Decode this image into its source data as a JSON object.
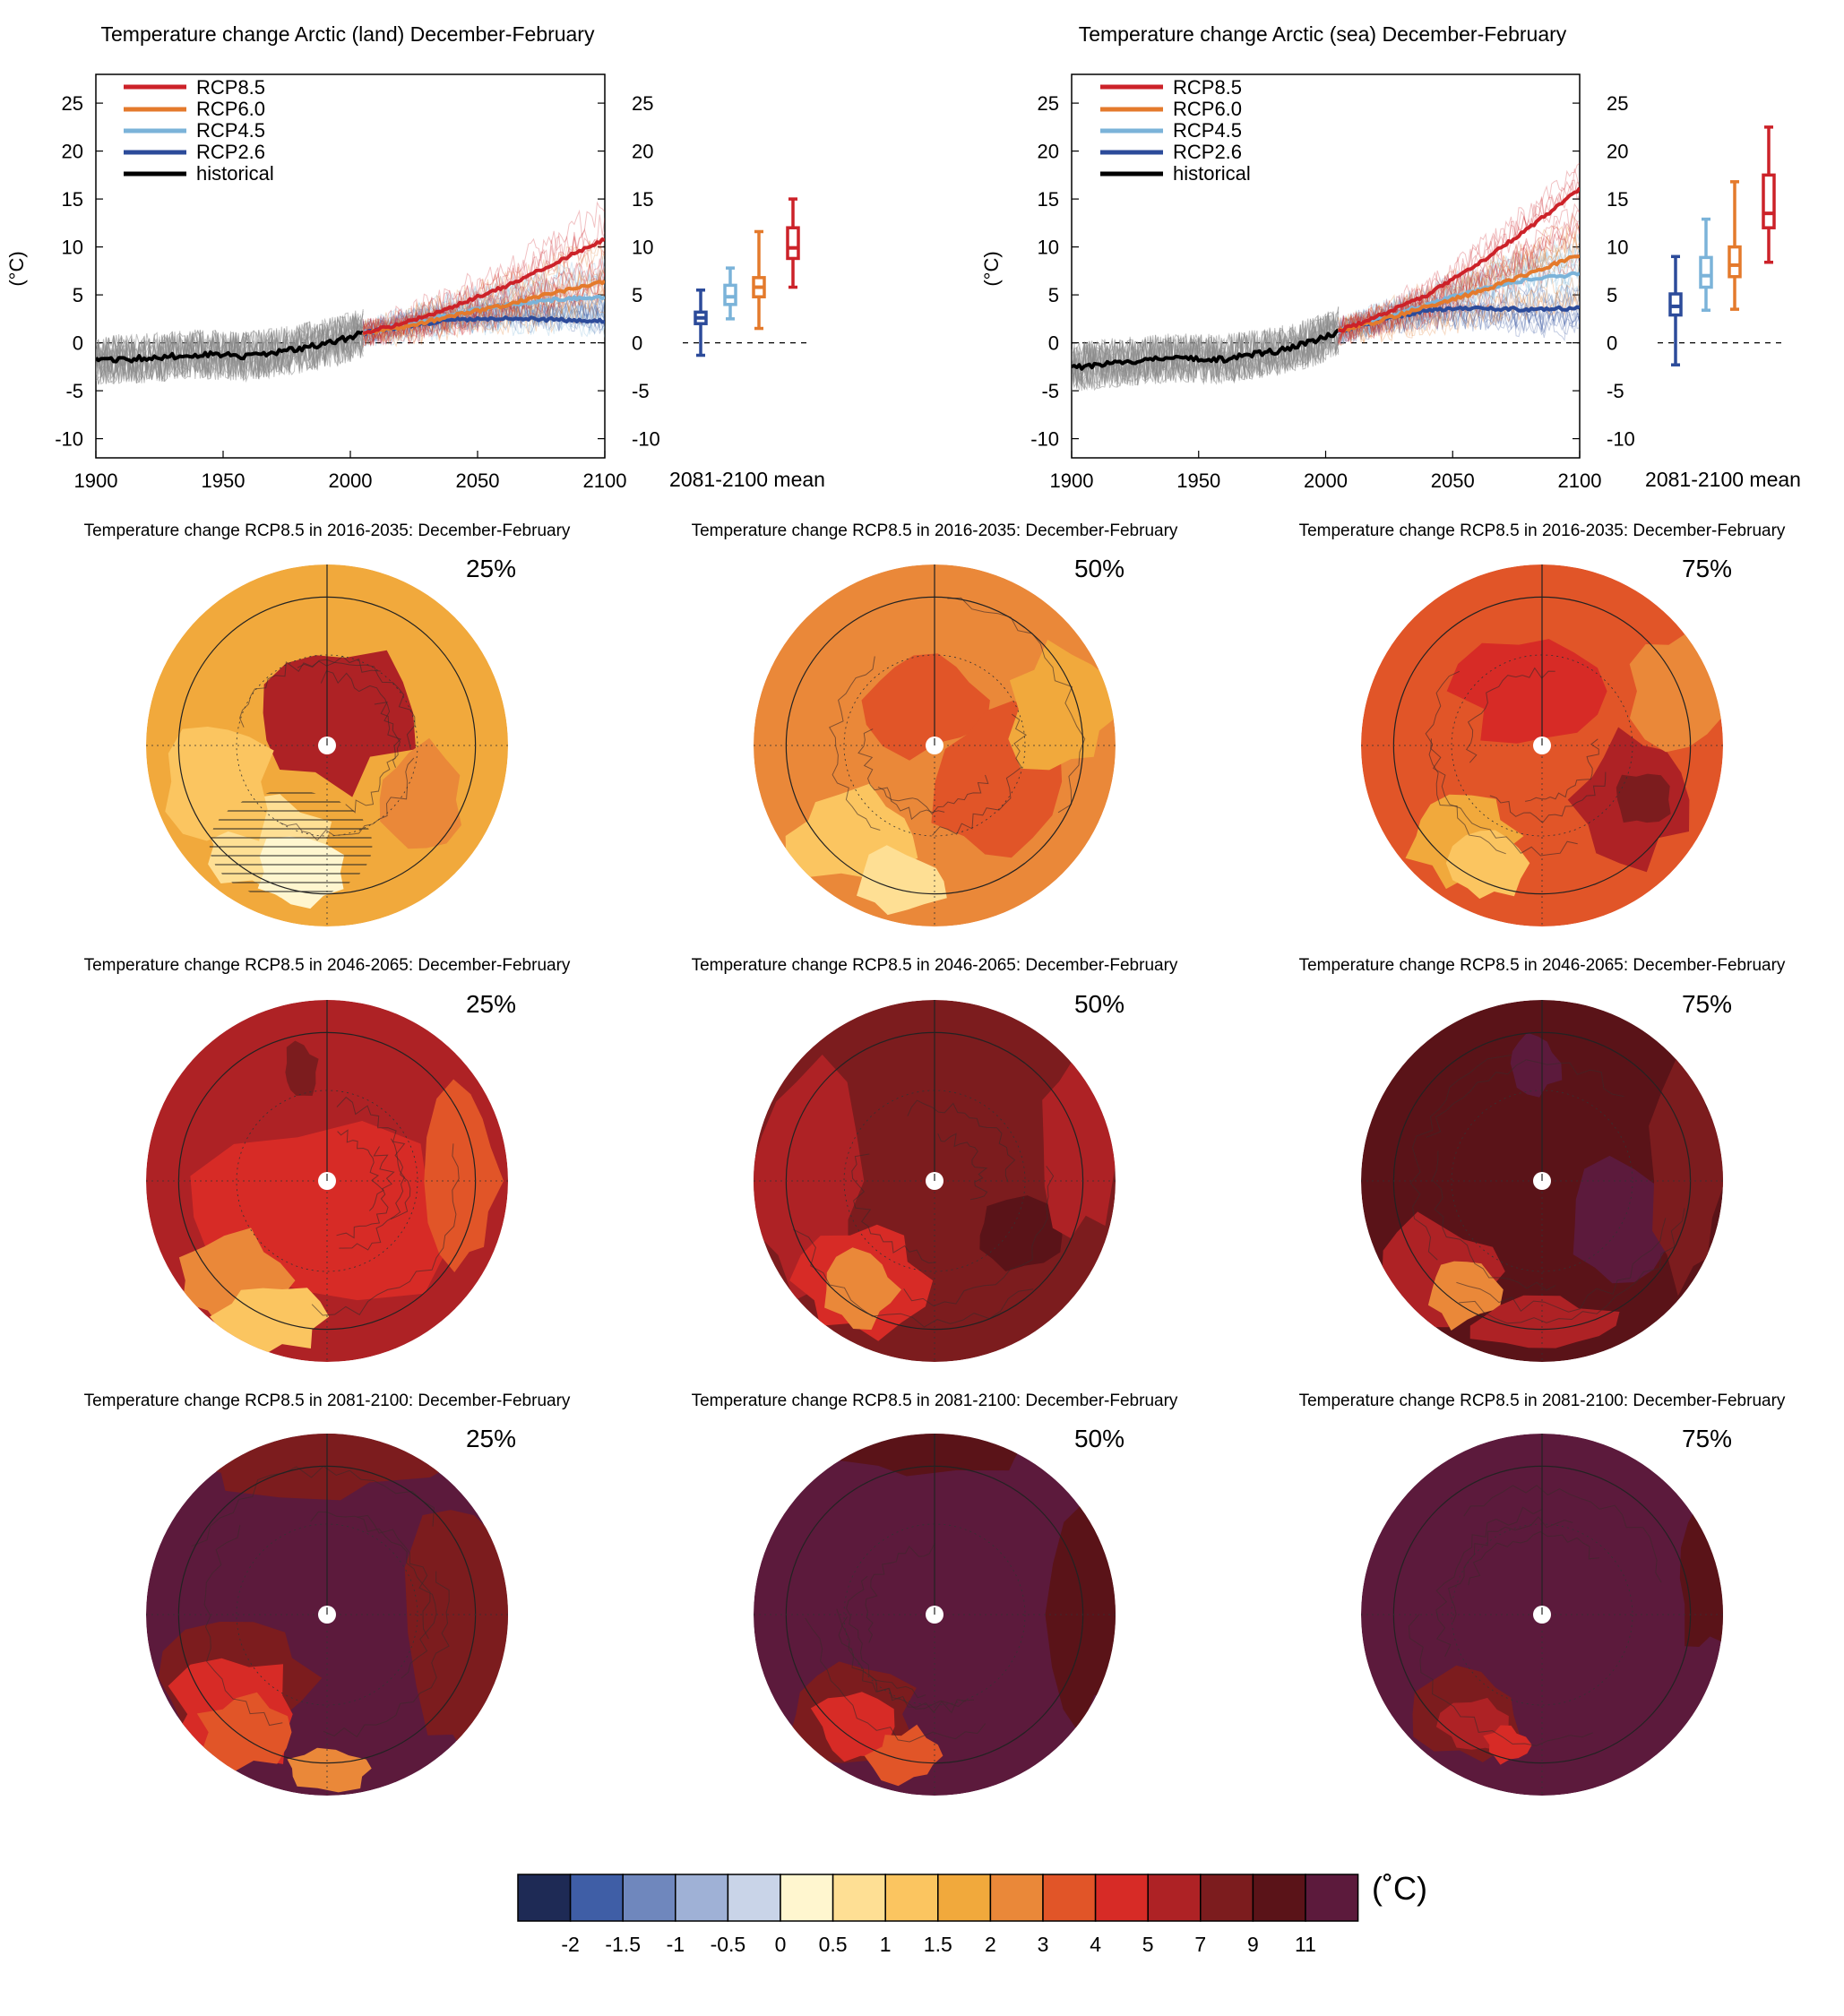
{
  "colors": {
    "rcp85": "#cc2229",
    "rcp60": "#e47a2c",
    "rcp45": "#7bb3d9",
    "rcp26": "#2c4b9a",
    "historical": "#000000",
    "historical_spread": "#8a8a8a",
    "map_land": "#3a2a2a"
  },
  "timeseries": {
    "unit_label": "(°C)",
    "box_axis_label": "2081-2100 mean",
    "panels": [
      {
        "title": "Temperature change Arctic (land) December-February",
        "legend": [
          "RCP8.5",
          "RCP6.0",
          "RCP4.5",
          "RCP2.6",
          "historical"
        ]
      },
      {
        "title": "Temperature change Arctic (sea) December-February",
        "legend": [
          "RCP8.5",
          "RCP6.0",
          "RCP4.5",
          "RCP2.6",
          "historical"
        ]
      }
    ]
  },
  "maps": {
    "rows": [
      {
        "title": "Temperature change RCP8.5 in 2016-2035: December-February",
        "percentiles": [
          "25%",
          "50%",
          "75%"
        ]
      },
      {
        "title": "Temperature change RCP8.5 in 2046-2065: December-February",
        "percentiles": [
          "25%",
          "50%",
          "75%"
        ]
      },
      {
        "title": "Temperature change RCP8.5 in 2081-2100: December-February",
        "percentiles": [
          "25%",
          "50%",
          "75%"
        ]
      }
    ],
    "content": [
      [
        "2016-2035 25th percentile: mostly 1-3 °C, hatched low-signal area over Eurasia"
      ],
      [
        "2016-2035 median: 2-5 °C"
      ],
      [
        "2016-2035 75th percentile: 3-7 °C"
      ]
    ]
  },
  "colorbar": {
    "unit": "(˚C)",
    "colors": [
      "#1e2a55",
      "#3f5ea6",
      "#6f87bd",
      "#9fb1d6",
      "#c9d4e8",
      "#fff6cf",
      "#fedf94",
      "#fbc560",
      "#f1a93c",
      "#ea8839",
      "#e15528",
      "#d72b26",
      "#ae2225",
      "#7c1c1e",
      "#5a1318",
      "#5c1a3c"
    ],
    "tick_labels": [
      "-2",
      "-1.5",
      "-1",
      "-0.5",
      "0",
      "0.5",
      "1",
      "1.5",
      "2",
      "3",
      "4",
      "5",
      "7",
      "9",
      "11"
    ]
  },
  "chart_data": [
    {
      "type": "line",
      "title": "Temperature change Arctic (land) December-February",
      "xlabel": "",
      "ylabel": "(°C)",
      "xlim": [
        1900,
        2100
      ],
      "ylim": [
        -12,
        28
      ],
      "xticks": [
        1900,
        1950,
        2000,
        2050,
        2100
      ],
      "yticks": [
        -10,
        -5,
        0,
        5,
        10,
        15,
        20,
        25
      ],
      "legend_position": "top-left",
      "series": [
        {
          "name": "historical",
          "color_key": "historical",
          "x": [
            1900,
            1920,
            1940,
            1960,
            1980,
            1995,
            2005
          ],
          "y": [
            -1.8,
            -1.6,
            -1.2,
            -1.4,
            -0.6,
            0.2,
            1.0
          ]
        },
        {
          "name": "RCP2.6",
          "color_key": "rcp26",
          "x": [
            2005,
            2020,
            2040,
            2060,
            2080,
            2100
          ],
          "y": [
            1.0,
            1.7,
            2.4,
            2.6,
            2.4,
            2.3
          ]
        },
        {
          "name": "RCP4.5",
          "color_key": "rcp45",
          "x": [
            2005,
            2020,
            2040,
            2060,
            2080,
            2100
          ],
          "y": [
            1.0,
            1.8,
            3.0,
            3.9,
            4.5,
            4.8
          ]
        },
        {
          "name": "RCP6.0",
          "color_key": "rcp60",
          "x": [
            2005,
            2020,
            2040,
            2060,
            2080,
            2100
          ],
          "y": [
            1.0,
            1.6,
            2.8,
            3.9,
            5.2,
            6.4
          ]
        },
        {
          "name": "RCP8.5",
          "color_key": "rcp85",
          "x": [
            2005,
            2020,
            2040,
            2060,
            2080,
            2100
          ],
          "y": [
            1.0,
            2.0,
            3.7,
            5.8,
            8.3,
            10.8
          ]
        }
      ],
      "box_2081_2100": [
        {
          "name": "RCP2.6",
          "color_key": "rcp26",
          "min": -1.3,
          "q1": 2.0,
          "median": 2.6,
          "q3": 3.2,
          "max": 5.5
        },
        {
          "name": "RCP4.5",
          "color_key": "rcp45",
          "min": 2.5,
          "q1": 4.0,
          "median": 4.8,
          "q3": 6.0,
          "max": 7.8
        },
        {
          "name": "RCP6.0",
          "color_key": "rcp60",
          "min": 1.5,
          "q1": 4.8,
          "median": 5.8,
          "q3": 6.8,
          "max": 11.6
        },
        {
          "name": "RCP8.5",
          "color_key": "rcp85",
          "min": 5.8,
          "q1": 8.8,
          "median": 9.9,
          "q3": 12.0,
          "max": 15.0
        }
      ]
    },
    {
      "type": "line",
      "title": "Temperature change Arctic (sea) December-February",
      "xlabel": "",
      "ylabel": "(°C)",
      "xlim": [
        1900,
        2100
      ],
      "ylim": [
        -12,
        28
      ],
      "xticks": [
        1900,
        1950,
        2000,
        2050,
        2100
      ],
      "yticks": [
        -10,
        -5,
        0,
        5,
        10,
        15,
        20,
        25
      ],
      "legend_position": "top-left",
      "series": [
        {
          "name": "historical",
          "color_key": "historical",
          "x": [
            1900,
            1920,
            1940,
            1960,
            1980,
            1995,
            2005
          ],
          "y": [
            -2.6,
            -2.0,
            -1.6,
            -1.7,
            -0.9,
            0.1,
            1.2
          ]
        },
        {
          "name": "RCP2.6",
          "color_key": "rcp26",
          "x": [
            2005,
            2020,
            2040,
            2060,
            2080,
            2100
          ],
          "y": [
            1.2,
            2.3,
            3.4,
            3.6,
            3.5,
            3.6
          ]
        },
        {
          "name": "RCP4.5",
          "color_key": "rcp45",
          "x": [
            2005,
            2020,
            2040,
            2060,
            2080,
            2100
          ],
          "y": [
            1.2,
            2.4,
            4.0,
            5.6,
            6.6,
            7.2
          ]
        },
        {
          "name": "RCP6.0",
          "color_key": "rcp60",
          "x": [
            2005,
            2020,
            2040,
            2060,
            2080,
            2100
          ],
          "y": [
            1.2,
            2.2,
            3.8,
            5.3,
            7.2,
            9.2
          ]
        },
        {
          "name": "RCP8.5",
          "color_key": "rcp85",
          "x": [
            2005,
            2020,
            2040,
            2060,
            2080,
            2100
          ],
          "y": [
            1.2,
            2.7,
            5.0,
            8.2,
            12.0,
            16.0
          ]
        }
      ],
      "box_2081_2100": [
        {
          "name": "RCP2.6",
          "color_key": "rcp26",
          "min": -2.3,
          "q1": 2.9,
          "median": 3.8,
          "q3": 5.1,
          "max": 9.0
        },
        {
          "name": "RCP4.5",
          "color_key": "rcp45",
          "min": 3.4,
          "q1": 5.8,
          "median": 7.0,
          "q3": 8.9,
          "max": 12.9
        },
        {
          "name": "RCP6.0",
          "color_key": "rcp60",
          "min": 3.5,
          "q1": 6.9,
          "median": 8.1,
          "q3": 10.0,
          "max": 16.8
        },
        {
          "name": "RCP8.5",
          "color_key": "rcp85",
          "min": 8.4,
          "q1": 12.0,
          "median": 13.5,
          "q3": 17.5,
          "max": 22.5
        }
      ]
    }
  ],
  "map_panels": [
    {
      "row": 0,
      "col": 0,
      "base": 8,
      "patches": [
        [
          12,
          0.02,
          -0.18,
          0.45,
          0.4
        ],
        [
          6,
          -0.35,
          0.55,
          0.35,
          0.25
        ],
        [
          5,
          -0.15,
          0.7,
          0.25,
          0.2
        ],
        [
          9,
          0.5,
          0.3,
          0.25,
          0.3
        ],
        [
          7,
          -0.6,
          0.2,
          0.3,
          0.35
        ]
      ],
      "hatched": true
    },
    {
      "row": 0,
      "col": 1,
      "base": 9,
      "patches": [
        [
          10,
          -0.05,
          -0.25,
          0.35,
          0.3
        ],
        [
          10,
          0.35,
          0.2,
          0.35,
          0.45
        ],
        [
          7,
          -0.45,
          0.5,
          0.35,
          0.25
        ],
        [
          6,
          -0.2,
          0.75,
          0.25,
          0.18
        ],
        [
          8,
          0.7,
          -0.2,
          0.3,
          0.35
        ]
      ],
      "hatched": false
    },
    {
      "row": 0,
      "col": 2,
      "base": 10,
      "patches": [
        [
          11,
          -0.05,
          -0.3,
          0.4,
          0.3
        ],
        [
          12,
          0.5,
          0.3,
          0.3,
          0.35
        ],
        [
          13,
          0.55,
          0.3,
          0.15,
          0.15
        ],
        [
          8,
          -0.45,
          0.5,
          0.3,
          0.25
        ],
        [
          7,
          -0.3,
          0.65,
          0.2,
          0.2
        ],
        [
          9,
          0.75,
          -0.3,
          0.3,
          0.35
        ]
      ],
      "hatched": false
    },
    {
      "row": 1,
      "col": 0,
      "base": 12,
      "patches": [
        [
          11,
          0.0,
          0.2,
          0.8,
          0.5
        ],
        [
          9,
          -0.5,
          0.55,
          0.3,
          0.25
        ],
        [
          7,
          -0.3,
          0.75,
          0.3,
          0.2
        ],
        [
          13,
          -0.15,
          -0.6,
          0.1,
          0.15
        ],
        [
          10,
          0.75,
          0.0,
          0.2,
          0.5
        ]
      ],
      "hatched": false
    },
    {
      "row": 1,
      "col": 1,
      "base": 13,
      "patches": [
        [
          12,
          -0.7,
          0.0,
          0.3,
          0.6
        ],
        [
          11,
          -0.4,
          0.55,
          0.35,
          0.3
        ],
        [
          9,
          -0.4,
          0.6,
          0.2,
          0.2
        ],
        [
          14,
          0.45,
          0.3,
          0.25,
          0.2
        ],
        [
          12,
          0.8,
          -0.2,
          0.2,
          0.5
        ]
      ],
      "hatched": false
    },
    {
      "row": 1,
      "col": 2,
      "base": 14,
      "patches": [
        [
          15,
          -0.05,
          -0.65,
          0.15,
          0.18
        ],
        [
          15,
          0.45,
          0.25,
          0.3,
          0.35
        ],
        [
          12,
          -0.6,
          0.5,
          0.35,
          0.3
        ],
        [
          9,
          -0.45,
          0.6,
          0.2,
          0.2
        ],
        [
          13,
          0.8,
          0.0,
          0.2,
          0.6
        ],
        [
          12,
          0.0,
          0.8,
          0.4,
          0.15
        ]
      ],
      "hatched": false
    },
    {
      "row": 2,
      "col": 0,
      "base": 15,
      "patches": [
        [
          13,
          0.75,
          0.1,
          0.3,
          0.7
        ],
        [
          13,
          -0.1,
          -0.85,
          0.7,
          0.2
        ],
        [
          13,
          -0.5,
          0.35,
          0.4,
          0.3
        ],
        [
          11,
          -0.5,
          0.55,
          0.35,
          0.3
        ],
        [
          10,
          -0.45,
          0.65,
          0.25,
          0.2
        ],
        [
          9,
          0.0,
          0.85,
          0.25,
          0.12
        ]
      ],
      "hatched": false
    },
    {
      "row": 2,
      "col": 1,
      "base": 15,
      "patches": [
        [
          14,
          0.85,
          0.0,
          0.2,
          0.6
        ],
        [
          14,
          0.0,
          -0.9,
          0.6,
          0.12
        ],
        [
          13,
          -0.45,
          0.55,
          0.35,
          0.3
        ],
        [
          11,
          -0.45,
          0.62,
          0.22,
          0.2
        ],
        [
          10,
          -0.15,
          0.78,
          0.2,
          0.15
        ]
      ],
      "hatched": false
    },
    {
      "row": 2,
      "col": 2,
      "base": 15,
      "patches": [
        [
          14,
          0.9,
          -0.2,
          0.15,
          0.4
        ],
        [
          13,
          -0.4,
          0.55,
          0.3,
          0.25
        ],
        [
          12,
          -0.35,
          0.62,
          0.2,
          0.15
        ],
        [
          11,
          -0.2,
          0.72,
          0.12,
          0.1
        ]
      ],
      "hatched": false
    }
  ]
}
